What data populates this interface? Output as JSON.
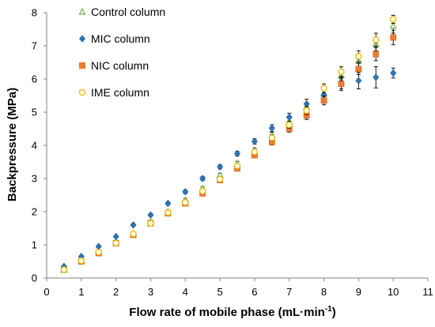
{
  "chart_data": {
    "type": "scatter",
    "xlabel": "Flow rate of mobile phase (mL·min",
    "xlabel_superscript": "-1",
    "xlabel_close": ")",
    "ylabel": "Backpressure (MPa)",
    "xlim": [
      0,
      11
    ],
    "ylim": [
      0,
      8
    ],
    "xticks": [
      0,
      1,
      2,
      3,
      4,
      5,
      6,
      7,
      8,
      9,
      10,
      11
    ],
    "yticks": [
      0,
      1,
      2,
      3,
      4,
      5,
      6,
      7,
      8
    ],
    "grid": false,
    "legend_position": "top-left",
    "error_bars": true,
    "x": [
      0.5,
      1,
      1.5,
      2,
      2.5,
      3,
      3.5,
      4,
      4.5,
      5,
      5.5,
      6,
      6.5,
      7,
      7.5,
      8,
      8.5,
      9,
      9.5,
      10
    ],
    "series": [
      {
        "name": "Control column",
        "marker": "triangle-open",
        "color": "#70ad47",
        "values": [
          0.3,
          0.55,
          0.8,
          1.1,
          1.35,
          1.7,
          2.0,
          2.35,
          2.7,
          3.1,
          3.45,
          3.85,
          4.3,
          4.7,
          5.15,
          5.55,
          6.1,
          6.55,
          7.05,
          7.6
        ],
        "errors": [
          0.03,
          0.03,
          0.03,
          0.03,
          0.04,
          0.04,
          0.04,
          0.05,
          0.05,
          0.06,
          0.07,
          0.08,
          0.09,
          0.1,
          0.12,
          0.13,
          0.15,
          0.17,
          0.2,
          0.22
        ]
      },
      {
        "name": "MIC column",
        "marker": "diamond",
        "color": "#2e75b6",
        "values": [
          0.35,
          0.65,
          0.95,
          1.25,
          1.6,
          1.9,
          2.25,
          2.6,
          3.0,
          3.35,
          3.75,
          4.12,
          4.52,
          4.85,
          5.25,
          5.52,
          5.85,
          5.95,
          6.05,
          6.18
        ],
        "errors": [
          0.03,
          0.03,
          0.03,
          0.03,
          0.04,
          0.04,
          0.05,
          0.05,
          0.06,
          0.06,
          0.07,
          0.08,
          0.1,
          0.12,
          0.14,
          0.17,
          0.2,
          0.25,
          0.32,
          0.15
        ]
      },
      {
        "name": "NIC column",
        "marker": "square",
        "color": "#ed7d31",
        "values": [
          0.25,
          0.5,
          0.75,
          1.05,
          1.3,
          1.65,
          1.95,
          2.25,
          2.55,
          2.95,
          3.3,
          3.7,
          4.1,
          4.5,
          4.9,
          5.35,
          5.85,
          6.3,
          6.75,
          7.25
        ],
        "errors": [
          0.03,
          0.03,
          0.03,
          0.03,
          0.03,
          0.04,
          0.04,
          0.05,
          0.05,
          0.06,
          0.07,
          0.08,
          0.09,
          0.1,
          0.12,
          0.13,
          0.15,
          0.17,
          0.2,
          0.22
        ]
      },
      {
        "name": "IME column",
        "marker": "circle-open",
        "color": "#e6b800",
        "values": [
          0.25,
          0.52,
          0.78,
          1.05,
          1.33,
          1.65,
          1.97,
          2.28,
          2.62,
          2.98,
          3.38,
          3.8,
          4.22,
          4.62,
          5.05,
          5.72,
          6.22,
          6.68,
          7.18,
          7.8
        ],
        "errors": [
          0.03,
          0.03,
          0.03,
          0.03,
          0.03,
          0.04,
          0.04,
          0.05,
          0.05,
          0.06,
          0.07,
          0.08,
          0.09,
          0.1,
          0.12,
          0.13,
          0.15,
          0.17,
          0.2,
          0.12
        ]
      }
    ]
  }
}
